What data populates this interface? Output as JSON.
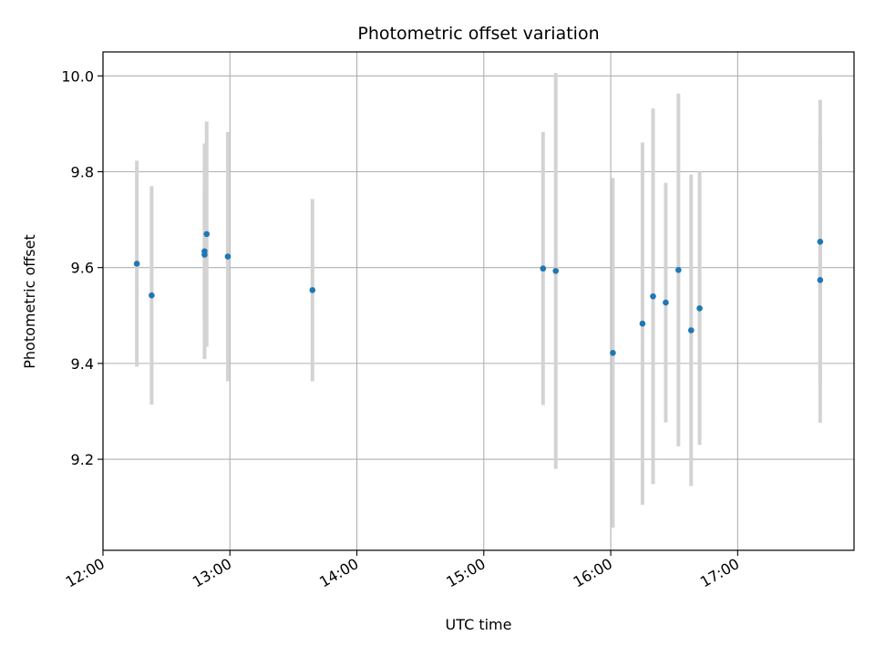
{
  "chart_data": {
    "type": "scatter",
    "title": "Photometric offset variation",
    "xlabel": "UTC time",
    "ylabel": "Photometric offset",
    "xlim": [
      "12:00",
      "17:55"
    ],
    "ylim": [
      9.01,
      10.05
    ],
    "x_ticks": [
      "12:00",
      "13:00",
      "14:00",
      "15:00",
      "16:00",
      "17:00"
    ],
    "y_ticks": [
      9.2,
      9.4,
      9.6,
      9.8,
      10.0
    ],
    "grid": true,
    "colors": {
      "point": "#1f77b4",
      "errorbar": "#d3d3d3",
      "grid": "#b0b0b0"
    },
    "points": [
      {
        "x": "12:16",
        "y": 9.608,
        "err": 0.215
      },
      {
        "x": "12:23",
        "y": 9.542,
        "err": 0.228
      },
      {
        "x": "12:48",
        "y": 9.634,
        "err": 0.225
      },
      {
        "x": "12:48",
        "y": 9.627,
        "err": 0.135
      },
      {
        "x": "12:49",
        "y": 9.67,
        "err": 0.235
      },
      {
        "x": "12:59",
        "y": 9.623,
        "err": 0.26
      },
      {
        "x": "13:39",
        "y": 9.553,
        "err": 0.19
      },
      {
        "x": "15:28",
        "y": 9.598,
        "err": 0.285
      },
      {
        "x": "15:34",
        "y": 9.593,
        "err": 0.413
      },
      {
        "x": "16:01",
        "y": 9.422,
        "err": 0.365
      },
      {
        "x": "16:15",
        "y": 9.483,
        "err": 0.378
      },
      {
        "x": "16:20",
        "y": 9.54,
        "err": 0.392
      },
      {
        "x": "16:26",
        "y": 9.527,
        "err": 0.25
      },
      {
        "x": "16:32",
        "y": 9.595,
        "err": 0.368
      },
      {
        "x": "16:38",
        "y": 9.469,
        "err": 0.325
      },
      {
        "x": "16:42",
        "y": 9.515,
        "err": 0.285
      },
      {
        "x": "17:39",
        "y": 9.574,
        "err": 0.298
      },
      {
        "x": "17:39",
        "y": 9.654,
        "err": 0.296
      }
    ]
  }
}
